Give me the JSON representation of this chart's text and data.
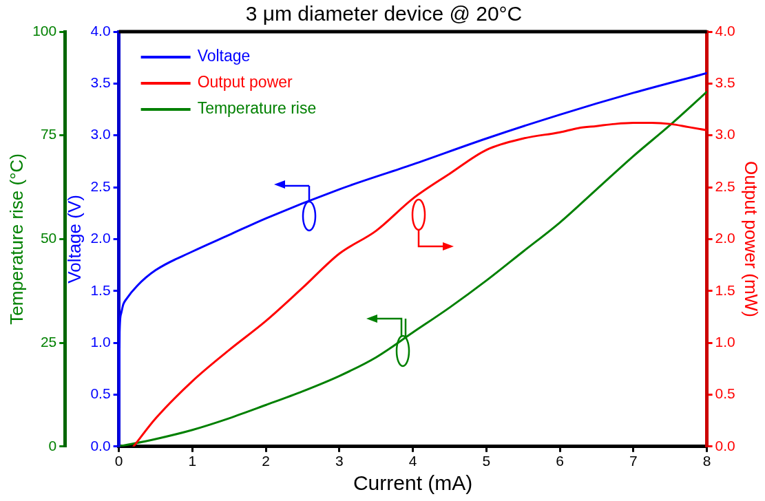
{
  "chart_data": {
    "type": "line",
    "title": "3 μm diameter device @ 20°C",
    "xlabel": "Current (mA)",
    "ylabel": "Voltage (V)",
    "y2label": "Output power (mW)",
    "y3label": "Temperature rise (°C)",
    "xlim": [
      0,
      8
    ],
    "xticks": [
      0,
      1,
      2,
      3,
      4,
      5,
      6,
      7,
      8
    ],
    "ylim": [
      0,
      4
    ],
    "yticks": [
      {
        "value": 0,
        "label": "0.0"
      },
      0.5,
      {
        "value": 1,
        "label": "1.0"
      },
      1.5,
      {
        "value": 2,
        "label": "2.0"
      },
      2.5,
      {
        "value": 3,
        "label": "3.0"
      },
      3.5,
      {
        "value": 4,
        "label": "4.0"
      }
    ],
    "y2lim": [
      0,
      4
    ],
    "y2ticks": [
      {
        "value": 0,
        "label": "0.0"
      },
      0.5,
      {
        "value": 1,
        "label": "1.0"
      },
      1.5,
      {
        "value": 2,
        "label": "2.0"
      },
      2.5,
      {
        "value": 3,
        "label": "3.0"
      },
      3.5,
      {
        "value": 4,
        "label": "4.0"
      }
    ],
    "y3lim": [
      0,
      100
    ],
    "y3ticks": [
      0,
      25,
      50,
      75,
      100
    ],
    "grid": false,
    "legend": "top left",
    "marker": "none",
    "line_style": "solid",
    "series": [
      {
        "name": "Voltage",
        "color": "#0000ff",
        "axis": "y",
        "x": [
          0,
          0.01,
          0.03,
          0.06,
          0.1,
          0.25,
          0.5,
          1,
          1.5,
          2,
          3,
          4,
          5,
          6,
          7,
          8
        ],
        "values": [
          0,
          1.1,
          1.28,
          1.37,
          1.42,
          1.55,
          1.7,
          1.88,
          2.04,
          2.2,
          2.48,
          2.72,
          2.97,
          3.2,
          3.41,
          3.6
        ]
      },
      {
        "name": "Output power",
        "color": "#ff0000",
        "axis": "y2",
        "x": [
          0.2,
          0.5,
          1,
          1.5,
          2,
          2.5,
          3,
          3.5,
          4,
          4.5,
          5,
          5.5,
          6,
          6.25,
          6.5,
          6.75,
          7,
          7.25,
          7.5,
          7.75,
          8
        ],
        "values": [
          0,
          0.27,
          0.63,
          0.93,
          1.21,
          1.53,
          1.86,
          2.08,
          2.39,
          2.63,
          2.86,
          2.97,
          3.03,
          3.07,
          3.09,
          3.11,
          3.12,
          3.12,
          3.11,
          3.08,
          3.05
        ]
      },
      {
        "name": "Temperature rise",
        "color": "#008000",
        "axis": "y3",
        "x": [
          0,
          0.5,
          1,
          1.5,
          2,
          2.5,
          3,
          3.5,
          4,
          4.5,
          5,
          5.5,
          6,
          6.5,
          7,
          7.5,
          8
        ],
        "values": [
          0,
          1.8,
          4,
          6.8,
          10,
          13.3,
          17,
          21.5,
          27.5,
          33.5,
          40,
          47,
          54,
          62,
          70,
          77.5,
          85.5
        ]
      }
    ]
  }
}
